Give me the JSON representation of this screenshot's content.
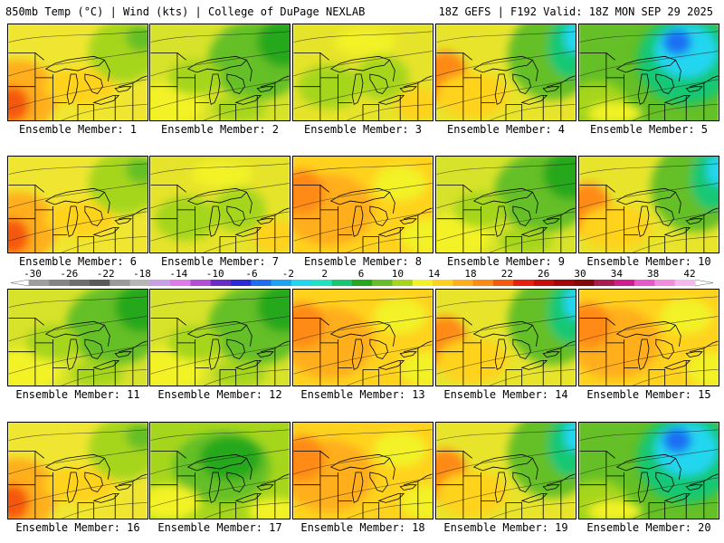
{
  "header": {
    "left": "850mb Temp (°C) | Wind (kts) | College of DuPage NEXLAB",
    "right": "18Z GEFS | F192 Valid: 18Z MON SEP 29 2025"
  },
  "colorbar": {
    "ticks": [
      "-30",
      "-26",
      "-22",
      "-18",
      "-14",
      "-10",
      "-6",
      "-2",
      "2",
      "6",
      "10",
      "14",
      "18",
      "22",
      "26",
      "30",
      "34",
      "38",
      "42"
    ],
    "colors": [
      "#9e9e9e",
      "#858585",
      "#6e6e6e",
      "#5a5a5a",
      "#9a9a9a",
      "#b6b6b6",
      "#c8a0e6",
      "#e07ae8",
      "#b34fd9",
      "#6a2cc9",
      "#2a2ad6",
      "#1f6ef2",
      "#1fa2f2",
      "#22d6f0",
      "#1fe3c2",
      "#19c773",
      "#26a81c",
      "#65bf26",
      "#a6d61c",
      "#f2f227",
      "#ffd21e",
      "#ffae1e",
      "#ff8a16",
      "#f5580f",
      "#e61f0e",
      "#c80d0d",
      "#a1070b",
      "#850808",
      "#aa1b52",
      "#d01e8e",
      "#e858c8",
      "#f28de0",
      "#f5b9ee"
    ]
  },
  "panels": [
    {
      "label": "Ensemble Member: 1",
      "style": "warmwest"
    },
    {
      "label": "Ensemble Member: 2",
      "style": "coolne"
    },
    {
      "label": "Ensemble Member: 3",
      "style": "mild"
    },
    {
      "label": "Ensemble Member: 4",
      "style": "coolne2"
    },
    {
      "label": "Ensemble Member: 5",
      "style": "cold"
    },
    {
      "label": "Ensemble Member: 6",
      "style": "warmwest"
    },
    {
      "label": "Ensemble Member: 7",
      "style": "mild"
    },
    {
      "label": "Ensemble Member: 8",
      "style": "warm"
    },
    {
      "label": "Ensemble Member: 9",
      "style": "coolne"
    },
    {
      "label": "Ensemble Member: 10",
      "style": "coolne2"
    },
    {
      "label": "Ensemble Member: 11",
      "style": "coolne"
    },
    {
      "label": "Ensemble Member: 12",
      "style": "coolne"
    },
    {
      "label": "Ensemble Member: 13",
      "style": "warm"
    },
    {
      "label": "Ensemble Member: 14",
      "style": "coolne2"
    },
    {
      "label": "Ensemble Member: 15",
      "style": "warm"
    },
    {
      "label": "Ensemble Member: 16",
      "style": "warmwest"
    },
    {
      "label": "Ensemble Member: 17",
      "style": "green"
    },
    {
      "label": "Ensemble Member: 18",
      "style": "warm"
    },
    {
      "label": "Ensemble Member: 19",
      "style": "coolne2"
    },
    {
      "label": "Ensemble Member: 20",
      "style": "cold"
    }
  ]
}
